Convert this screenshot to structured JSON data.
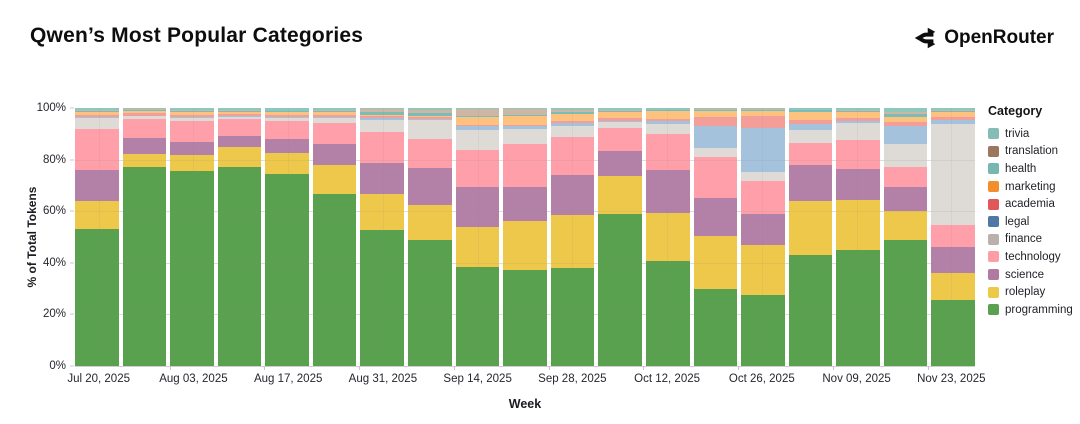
{
  "header": {
    "title": "Qwen’s Most Popular Categories",
    "brand": "OpenRouter",
    "brand_icon": "openrouter-chevron-icon"
  },
  "chart_data": {
    "type": "bar",
    "variant": "stacked-100-percent",
    "title": "Qwen’s Most Popular Categories",
    "xlabel": "Week",
    "ylabel": "% of Total Tokens",
    "ylim": [
      0,
      100
    ],
    "grid": true,
    "legend_title": "Category",
    "legend_position": "right",
    "y_ticks": [
      {
        "value": 0,
        "label": "0%"
      },
      {
        "value": 20,
        "label": "20%"
      },
      {
        "value": 40,
        "label": "40%"
      },
      {
        "value": 60,
        "label": "60%"
      },
      {
        "value": 80,
        "label": "80%"
      },
      {
        "value": 100,
        "label": "100%"
      }
    ],
    "categories": [
      "Jul 20, 2025",
      "Jul 27, 2025",
      "Aug 03, 2025",
      "Aug 10, 2025",
      "Aug 17, 2025",
      "Aug 24, 2025",
      "Aug 31, 2025",
      "Sep 07, 2025",
      "Sep 14, 2025",
      "Sep 21, 2025",
      "Sep 28, 2025",
      "Oct 05, 2025",
      "Oct 12, 2025",
      "Oct 19, 2025",
      "Oct 26, 2025",
      "Nov 02, 2025",
      "Nov 09, 2025",
      "Nov 16, 2025",
      "Nov 23, 2025"
    ],
    "x_tick_indices": [
      0,
      2,
      4,
      6,
      8,
      10,
      12,
      14,
      16,
      18
    ],
    "series_note": "series listed bottom-to-top of stack; legend displays reverse order; values are % of total tokens per week",
    "series": [
      {
        "name": "programming",
        "color": "#59a14f",
        "legend_color": "#59a14f",
        "values": [
          53.0,
          77.3,
          75.4,
          77.0,
          74.5,
          66.7,
          52.9,
          49.0,
          38.3,
          37.3,
          38.0,
          59.0,
          40.7,
          29.7,
          27.5,
          43.2,
          44.9,
          48.8,
          25.5
        ]
      },
      {
        "name": "roleplay",
        "color": "#eec84b",
        "legend_color": "#edc949",
        "values": [
          11.0,
          5.0,
          6.2,
          7.7,
          8.0,
          11.3,
          13.6,
          13.5,
          15.5,
          19.1,
          20.7,
          14.8,
          18.6,
          20.6,
          19.3,
          20.9,
          19.6,
          11.4,
          10.5
        ]
      },
      {
        "name": "science",
        "color": "#b381a7",
        "legend_color": "#b07aa1",
        "values": [
          12.0,
          6.0,
          5.2,
          4.3,
          5.4,
          8.0,
          12.3,
          14.2,
          15.4,
          13.1,
          15.4,
          9.7,
          16.8,
          14.8,
          12.2,
          13.9,
          11.9,
          9.2,
          10.3
        ]
      },
      {
        "name": "technology",
        "color": "#ff9fa9",
        "legend_color": "#ff9da7",
        "values": [
          16.0,
          7.5,
          8.3,
          6.9,
          7.1,
          8.1,
          12.0,
          11.4,
          14.4,
          16.5,
          14.8,
          8.6,
          13.7,
          16.1,
          12.9,
          8.6,
          11.2,
          7.6,
          8.5
        ]
      },
      {
        "name": "finance",
        "color": "#dedad6",
        "legend_color": "#bab0ac",
        "values": [
          4.0,
          1.0,
          1.2,
          0.8,
          1.2,
          2.0,
          4.5,
          7.4,
          8.0,
          5.8,
          4.3,
          2.3,
          4.2,
          3.2,
          3.2,
          4.9,
          6.6,
          9.0,
          39.2
        ]
      },
      {
        "name": "legal",
        "color": "#a5c2dd",
        "legend_color": "#4e79a7",
        "values": [
          0.5,
          0.3,
          0.3,
          0.3,
          0.3,
          0.4,
          0.9,
          0.3,
          1.5,
          1.2,
          1.2,
          0.4,
          0.9,
          8.6,
          17.0,
          2.2,
          0.9,
          6.9,
          1.3
        ]
      },
      {
        "name": "academia",
        "color": "#f49e9a",
        "legend_color": "#e15759",
        "values": [
          0.9,
          0.8,
          0.8,
          0.7,
          0.9,
          0.9,
          0.9,
          0.9,
          0.5,
          0.6,
          0.7,
          1.3,
          1.0,
          3.4,
          4.7,
          1.7,
          0.9,
          1.7,
          1.2
        ]
      },
      {
        "name": "marketing",
        "color": "#fdc27e",
        "legend_color": "#f28e2b",
        "values": [
          1.0,
          0.9,
          1.0,
          0.8,
          0.9,
          1.0,
          0.4,
          0.3,
          3.0,
          3.2,
          2.5,
          2.5,
          2.8,
          2.5,
          2.2,
          3.2,
          2.3,
          2.0,
          1.8
        ]
      },
      {
        "name": "health",
        "color": "#79bdb6",
        "legend_color": "#76b7b2",
        "values": [
          0.5,
          0.4,
          0.4,
          0.4,
          0.4,
          0.5,
          0.9,
          1.0,
          0.5,
          0.5,
          0.7,
          0.4,
          0.4,
          0.4,
          0.4,
          0.5,
          0.6,
          1.2,
          0.6
        ]
      },
      {
        "name": "translation",
        "color": "#cdb6a4",
        "legend_color": "#9d7660",
        "values": [
          0.4,
          0.3,
          0.3,
          0.3,
          0.3,
          0.3,
          1.1,
          1.4,
          2.4,
          2.3,
          0.9,
          0.3,
          0.3,
          0.3,
          0.2,
          0.3,
          0.4,
          0.8,
          0.4
        ]
      },
      {
        "name": "trivia",
        "color": "#8fc7bd",
        "legend_color": "#86bcb6",
        "values": [
          0.7,
          0.5,
          0.9,
          0.8,
          1.0,
          0.8,
          0.5,
          0.6,
          0.5,
          0.4,
          0.8,
          0.7,
          0.6,
          0.4,
          0.4,
          0.6,
          0.7,
          1.4,
          0.7
        ]
      }
    ]
  }
}
